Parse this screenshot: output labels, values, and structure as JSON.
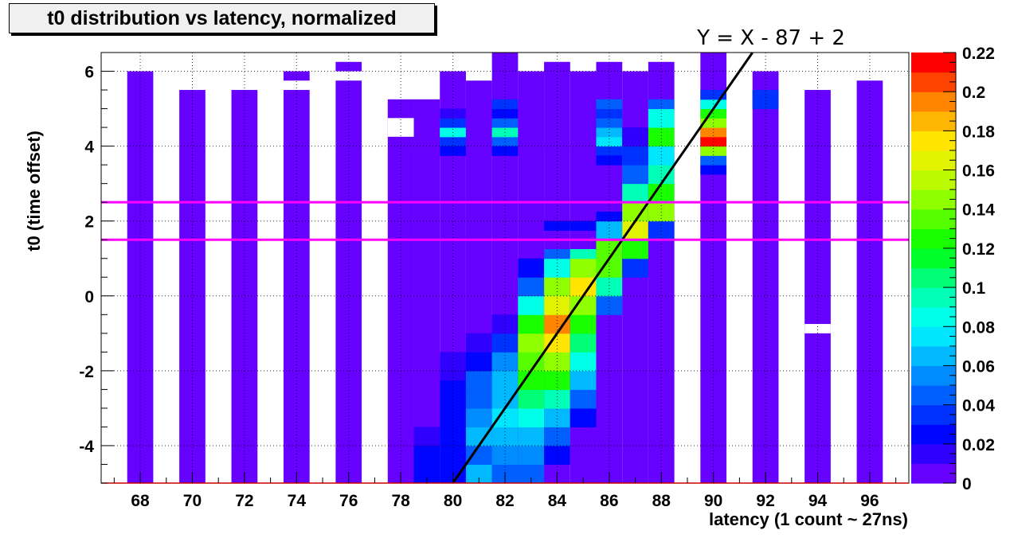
{
  "chart_data": {
    "type": "heatmap",
    "title": "t0 distribution vs latency, normalized",
    "xlabel": "latency (1 count ~ 27ns)",
    "ylabel": "t0 (time offset)",
    "xlim": [
      66.5,
      97.5
    ],
    "ylim": [
      -5,
      6.5
    ],
    "x_ticks": [
      68,
      70,
      72,
      74,
      76,
      78,
      80,
      82,
      84,
      86,
      88,
      90,
      92,
      94,
      96
    ],
    "y_ticks": [
      -4,
      -2,
      0,
      2,
      4,
      6
    ],
    "grid": true,
    "colorbar": {
      "min": 0,
      "max": 0.22,
      "ticks": [
        0,
        0.02,
        0.04,
        0.06,
        0.08,
        0.1,
        0.12,
        0.14,
        0.16,
        0.18,
        0.2,
        0.22
      ]
    },
    "cell_height": 0.25,
    "columns": [
      {
        "x": 68,
        "top": 6.0,
        "values": []
      },
      {
        "x": 70,
        "top": 5.5,
        "values": []
      },
      {
        "x": 72,
        "top": 5.5,
        "values": []
      },
      {
        "x": 74,
        "top": 5.5,
        "values": [],
        "extra": [
          [
            5.75,
            0.005
          ]
        ]
      },
      {
        "x": 76,
        "top": 5.75,
        "values": [],
        "extra": [
          [
            6.0,
            0.005
          ]
        ]
      },
      {
        "x": 78,
        "top": 5.25,
        "values": [],
        "hole": [
          4.25,
          4.75
        ]
      },
      {
        "x": 79,
        "top": 5.25,
        "values": [
          [
            -5,
            -4,
            0.02
          ],
          [
            -4,
            -3.5,
            0.015
          ]
        ]
      },
      {
        "x": 80,
        "top": 6.0,
        "values": [
          [
            -5,
            -3.5,
            0.025
          ],
          [
            -3.5,
            -2.25,
            0.02
          ],
          [
            -2.25,
            -1.5,
            0.015
          ],
          [
            4.0,
            4.25,
            0.03
          ],
          [
            4.25,
            4.5,
            0.08
          ],
          [
            4.5,
            4.75,
            0.03
          ],
          [
            3.75,
            4.0,
            0.02
          ],
          [
            4.75,
            5.0,
            0.015
          ]
        ]
      },
      {
        "x": 81,
        "top": 5.75,
        "values": [
          [
            -5,
            -4.5,
            0.06
          ],
          [
            -4.5,
            -4.0,
            0.045
          ],
          [
            -4.0,
            -3.5,
            0.06
          ],
          [
            -3.5,
            -3.0,
            0.05
          ],
          [
            -3.0,
            -2.5,
            0.045
          ],
          [
            -2.5,
            -2.0,
            0.04
          ],
          [
            -2.0,
            -1.5,
            0.025
          ],
          [
            -1.5,
            -1.0,
            0.015
          ]
        ]
      },
      {
        "x": 82,
        "top": 6.5,
        "values": [
          [
            -5,
            -4.5,
            0.04
          ],
          [
            -4.5,
            -4.0,
            0.055
          ],
          [
            -4.0,
            -3.5,
            0.065
          ],
          [
            -3.5,
            -3.0,
            0.07
          ],
          [
            -3.0,
            -2.5,
            0.065
          ],
          [
            -2.5,
            -2.0,
            0.06
          ],
          [
            -2.0,
            -1.5,
            0.05
          ],
          [
            -1.5,
            -1.0,
            0.03
          ],
          [
            -1.0,
            -0.5,
            0.015
          ],
          [
            4.0,
            4.25,
            0.04
          ],
          [
            4.25,
            4.5,
            0.09
          ],
          [
            4.5,
            4.75,
            0.04
          ],
          [
            3.75,
            4.0,
            0.025
          ],
          [
            4.75,
            5.0,
            0.02
          ],
          [
            5.0,
            5.25,
            0.03
          ]
        ]
      },
      {
        "x": 83,
        "top": 6.0,
        "values": [
          [
            -5,
            -4.5,
            0.04
          ],
          [
            -4.5,
            -4.0,
            0.05
          ],
          [
            -4.0,
            -3.5,
            0.065
          ],
          [
            -3.5,
            -3.0,
            0.085
          ],
          [
            -3.0,
            -2.5,
            0.1
          ],
          [
            -2.5,
            -2.0,
            0.12
          ],
          [
            -2.0,
            -1.5,
            0.13
          ],
          [
            -1.5,
            -1.0,
            0.14
          ],
          [
            -1.0,
            -0.5,
            0.12
          ],
          [
            -0.5,
            0.0,
            0.08
          ],
          [
            0.0,
            0.5,
            0.04
          ],
          [
            0.5,
            1.0,
            0.02
          ]
        ]
      },
      {
        "x": 84,
        "top": 6.25,
        "values": [
          [
            -4.5,
            -4.0,
            0.025
          ],
          [
            -4.0,
            -3.5,
            0.04
          ],
          [
            -3.5,
            -3.0,
            0.06
          ],
          [
            -3.0,
            -2.5,
            0.09
          ],
          [
            -2.5,
            -2.0,
            0.12
          ],
          [
            -2.0,
            -1.5,
            0.14
          ],
          [
            -1.5,
            -1.0,
            0.17
          ],
          [
            -1.0,
            -0.5,
            0.19
          ],
          [
            -0.5,
            0.0,
            0.16
          ],
          [
            0.0,
            0.5,
            0.14
          ],
          [
            0.5,
            1.0,
            0.08
          ],
          [
            1.0,
            1.25,
            0.04
          ],
          [
            1.75,
            2.0,
            0.02
          ]
        ]
      },
      {
        "x": 85,
        "top": 6.0,
        "values": [
          [
            -3.5,
            -3.0,
            0.025
          ],
          [
            -3.0,
            -2.5,
            0.04
          ],
          [
            -2.5,
            -2.0,
            0.06
          ],
          [
            -2.0,
            -1.5,
            0.08
          ],
          [
            -1.5,
            -1.0,
            0.1
          ],
          [
            -1.0,
            -0.5,
            0.12
          ],
          [
            -0.5,
            0.0,
            0.14
          ],
          [
            0.0,
            0.5,
            0.17
          ],
          [
            0.5,
            1.0,
            0.14
          ],
          [
            1.0,
            1.25,
            0.09
          ],
          [
            1.75,
            2.0,
            0.02
          ]
        ]
      },
      {
        "x": 86,
        "top": 6.25,
        "values": [
          [
            -0.5,
            0.0,
            0.04
          ],
          [
            0.0,
            0.5,
            0.09
          ],
          [
            0.5,
            1.0,
            0.13
          ],
          [
            1.0,
            1.5,
            0.13
          ],
          [
            1.5,
            2.0,
            0.06
          ],
          [
            2.0,
            2.25,
            0.02
          ],
          [
            3.75,
            4.0,
            0.03
          ],
          [
            4.0,
            4.25,
            0.07
          ],
          [
            4.25,
            4.5,
            0.06
          ],
          [
            4.5,
            4.75,
            0.045
          ],
          [
            4.75,
            5.0,
            0.03
          ],
          [
            5.0,
            5.25,
            0.045
          ],
          [
            3.5,
            3.75,
            0.02
          ]
        ]
      },
      {
        "x": 87,
        "top": 6.0,
        "values": [
          [
            0.5,
            1.0,
            0.03
          ],
          [
            1.0,
            1.5,
            0.12
          ],
          [
            1.5,
            2.0,
            0.16
          ],
          [
            2.0,
            2.5,
            0.14
          ],
          [
            2.5,
            3.0,
            0.09
          ],
          [
            3.0,
            3.5,
            0.04
          ],
          [
            3.5,
            4.0,
            0.03
          ],
          [
            4.0,
            4.5,
            0.015
          ]
        ]
      },
      {
        "x": 88,
        "top": 6.25,
        "values": [
          [
            1.5,
            2.0,
            0.03
          ],
          [
            2.0,
            2.5,
            0.14
          ],
          [
            2.5,
            3.0,
            0.12
          ],
          [
            3.0,
            3.5,
            0.09
          ],
          [
            3.5,
            4.0,
            0.07
          ],
          [
            4.0,
            4.5,
            0.12
          ],
          [
            4.5,
            5.0,
            0.08
          ],
          [
            5.0,
            5.25,
            0.04
          ]
        ]
      },
      {
        "x": 90,
        "top": 6.5,
        "values": [
          [
            3.25,
            3.5,
            0.02
          ],
          [
            3.5,
            3.75,
            0.045
          ],
          [
            3.75,
            4.0,
            0.14
          ],
          [
            4.0,
            4.25,
            0.21
          ],
          [
            4.25,
            4.5,
            0.19
          ],
          [
            4.5,
            4.75,
            0.15
          ],
          [
            4.75,
            5.0,
            0.12
          ],
          [
            5.0,
            5.25,
            0.08
          ],
          [
            5.25,
            5.5,
            0.03
          ]
        ]
      },
      {
        "x": 92,
        "top": 6.0,
        "values": [
          [
            5.0,
            5.5,
            0.03
          ]
        ]
      },
      {
        "x": 94,
        "top": 5.5,
        "values": [],
        "hole": [
          -1.0,
          -0.75
        ]
      },
      {
        "x": 96,
        "top": 5.75,
        "values": []
      }
    ],
    "annotations": [
      {
        "text": "Y = X - 87 + 2",
        "type": "line",
        "slope": 1,
        "intercept": -85,
        "color": "#000000"
      },
      {
        "type": "hline",
        "y": 2.5,
        "color": "#ff00ff"
      },
      {
        "type": "hline",
        "y": 1.5,
        "color": "#ff00ff"
      }
    ]
  }
}
